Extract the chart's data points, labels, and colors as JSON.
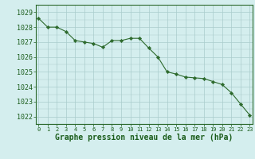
{
  "x": [
    0,
    1,
    2,
    3,
    4,
    5,
    6,
    7,
    8,
    9,
    10,
    11,
    12,
    13,
    14,
    15,
    16,
    17,
    18,
    19,
    20,
    21,
    22,
    23
  ],
  "y": [
    1028.6,
    1028.0,
    1028.0,
    1027.7,
    1027.1,
    1027.0,
    1026.9,
    1026.65,
    1027.1,
    1027.1,
    1027.25,
    1027.25,
    1026.6,
    1026.0,
    1025.0,
    1024.85,
    1024.65,
    1024.6,
    1024.55,
    1024.35,
    1024.15,
    1023.6,
    1022.85,
    1022.1
  ],
  "line_color": "#2d6a2d",
  "marker_color": "#2d6a2d",
  "bg_color": "#d4eeee",
  "grid_color": "#aacccc",
  "xlabel": "Graphe pression niveau de la mer (hPa)",
  "xlabel_color": "#1a5c1a",
  "xlabel_fontsize": 7,
  "tick_label_color": "#1a5c1a",
  "ytick_fontsize": 6,
  "xtick_fontsize": 5,
  "ylim_min": 1021.5,
  "ylim_max": 1029.5,
  "yticks": [
    1022,
    1023,
    1024,
    1025,
    1026,
    1027,
    1028,
    1029
  ],
  "xticks": [
    0,
    1,
    2,
    3,
    4,
    5,
    6,
    7,
    8,
    9,
    10,
    11,
    12,
    13,
    14,
    15,
    16,
    17,
    18,
    19,
    20,
    21,
    22,
    23
  ]
}
